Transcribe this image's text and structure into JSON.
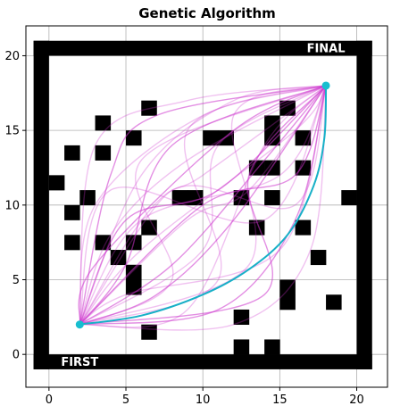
{
  "chart_data": {
    "type": "scatter",
    "title": "Genetic Algorithm",
    "xlabel": "",
    "ylabel": "",
    "xlim": [
      -1.5,
      22
    ],
    "ylim": [
      -2.2,
      22
    ],
    "x_ticks": [
      0,
      5,
      10,
      15,
      20
    ],
    "y_ticks": [
      0,
      5,
      10,
      15,
      20
    ],
    "grid": true,
    "start_label": "FIRST",
    "goal_label": "FINAL",
    "start": [
      2,
      2
    ],
    "goal": [
      18,
      18
    ],
    "colors": {
      "obstacle": "#000000",
      "candidate_paths": "#cc33cc",
      "best_path": "#17b0c7",
      "endpoint": "#17becf",
      "grid": "#b0b0b0"
    },
    "border": {
      "x_min": -1,
      "x_max": 21,
      "y_min": -1,
      "y_max": 21
    },
    "obstacles": [
      [
        6.5,
        16.5
      ],
      [
        3.5,
        15.5
      ],
      [
        5.5,
        14.5
      ],
      [
        1.5,
        13.5
      ],
      [
        3.5,
        13.5
      ],
      [
        10.5,
        14.5
      ],
      [
        11.5,
        14.5
      ],
      [
        14.5,
        15.5
      ],
      [
        14.5,
        14.5
      ],
      [
        15.5,
        16.5
      ],
      [
        16.5,
        14.5
      ],
      [
        13.5,
        12.5
      ],
      [
        14.5,
        12.5
      ],
      [
        16.5,
        12.5
      ],
      [
        0.5,
        11.5
      ],
      [
        2.5,
        10.5
      ],
      [
        1.5,
        9.5
      ],
      [
        8.5,
        10.5
      ],
      [
        9.5,
        10.5
      ],
      [
        12.5,
        10.5
      ],
      [
        14.5,
        10.5
      ],
      [
        19.5,
        10.5
      ],
      [
        13.5,
        8.5
      ],
      [
        16.5,
        8.5
      ],
      [
        6.5,
        8.5
      ],
      [
        1.5,
        7.5
      ],
      [
        3.5,
        7.5
      ],
      [
        5.5,
        7.5
      ],
      [
        4.5,
        6.5
      ],
      [
        5.5,
        5.5
      ],
      [
        5.5,
        4.5
      ],
      [
        17.5,
        6.5
      ],
      [
        15.5,
        4.5
      ],
      [
        15.5,
        3.5
      ],
      [
        18.5,
        3.5
      ],
      [
        12.5,
        2.5
      ],
      [
        6.5,
        1.5
      ],
      [
        12.5,
        0.5
      ],
      [
        14.5,
        0.5
      ]
    ],
    "best_path": [
      [
        2,
        2
      ],
      [
        6,
        2.6
      ],
      [
        10,
        4
      ],
      [
        13,
        5.7
      ],
      [
        15.5,
        8
      ],
      [
        17.2,
        11.3
      ],
      [
        17.9,
        14.5
      ],
      [
        18,
        18
      ]
    ],
    "candidate_paths": [
      [
        [
          2,
          2
        ],
        [
          8,
          6
        ],
        [
          14,
          13
        ],
        [
          18,
          18
        ]
      ],
      [
        [
          2,
          2
        ],
        [
          3,
          10
        ],
        [
          10,
          16
        ],
        [
          18,
          18
        ]
      ],
      [
        [
          2,
          2
        ],
        [
          6,
          12
        ],
        [
          12,
          17
        ],
        [
          18,
          18
        ]
      ],
      [
        [
          2,
          2
        ],
        [
          11,
          3
        ],
        [
          16,
          9
        ],
        [
          18,
          18
        ]
      ],
      [
        [
          2,
          2
        ],
        [
          4,
          8
        ],
        [
          9,
          13
        ],
        [
          18,
          18
        ]
      ],
      [
        [
          2,
          2
        ],
        [
          9,
          9
        ],
        [
          13,
          11
        ],
        [
          18,
          18
        ]
      ],
      [
        [
          2,
          2
        ],
        [
          7,
          4
        ],
        [
          12,
          9
        ],
        [
          18,
          18
        ]
      ],
      [
        [
          2,
          2
        ],
        [
          3,
          14
        ],
        [
          9,
          17
        ],
        [
          18,
          18
        ]
      ],
      [
        [
          2,
          2
        ],
        [
          12,
          2
        ],
        [
          17,
          7
        ],
        [
          18,
          18
        ]
      ],
      [
        [
          2,
          2
        ],
        [
          5,
          6
        ],
        [
          8,
          14
        ],
        [
          18,
          18
        ]
      ],
      [
        [
          2,
          2
        ],
        [
          10,
          7
        ],
        [
          11,
          14
        ],
        [
          18,
          18
        ]
      ],
      [
        [
          2,
          2
        ],
        [
          6,
          9
        ],
        [
          15,
          12
        ],
        [
          18,
          18
        ]
      ],
      [
        [
          2,
          2
        ],
        [
          14,
          4
        ],
        [
          13,
          12
        ],
        [
          18,
          18
        ]
      ],
      [
        [
          2,
          2
        ],
        [
          4,
          11
        ],
        [
          14,
          9
        ],
        [
          18,
          18
        ]
      ],
      [
        [
          2,
          2
        ],
        [
          8,
          5
        ],
        [
          6,
          13
        ],
        [
          18,
          18
        ]
      ],
      [
        [
          2,
          2
        ],
        [
          10,
          10
        ],
        [
          16,
          12
        ],
        [
          18,
          18
        ]
      ],
      [
        [
          2,
          2
        ],
        [
          5,
          4
        ],
        [
          15,
          7
        ],
        [
          18,
          18
        ]
      ],
      [
        [
          2,
          2
        ],
        [
          7,
          10
        ],
        [
          10,
          12
        ],
        [
          18,
          18
        ]
      ],
      [
        [
          2,
          2
        ],
        [
          3,
          6
        ],
        [
          12,
          15
        ],
        [
          18,
          18
        ]
      ],
      [
        [
          2,
          2
        ],
        [
          9,
          3
        ],
        [
          14,
          14
        ],
        [
          18,
          18
        ]
      ],
      [
        [
          2,
          2
        ],
        [
          6,
          7
        ],
        [
          16,
          15
        ],
        [
          18,
          18
        ]
      ],
      [
        [
          2,
          2
        ],
        [
          4,
          12
        ],
        [
          7,
          16
        ],
        [
          18,
          18
        ]
      ],
      [
        [
          2,
          2
        ],
        [
          13,
          6
        ],
        [
          12,
          16
        ],
        [
          18,
          18
        ]
      ],
      [
        [
          2,
          2
        ],
        [
          8,
          11
        ],
        [
          16,
          10
        ],
        [
          18,
          18
        ]
      ],
      [
        [
          2,
          2
        ],
        [
          5,
          9
        ],
        [
          11,
          11
        ],
        [
          18,
          18
        ]
      ],
      [
        [
          2,
          2
        ],
        [
          11,
          5
        ],
        [
          9,
          15
        ],
        [
          18,
          18
        ]
      ]
    ]
  }
}
